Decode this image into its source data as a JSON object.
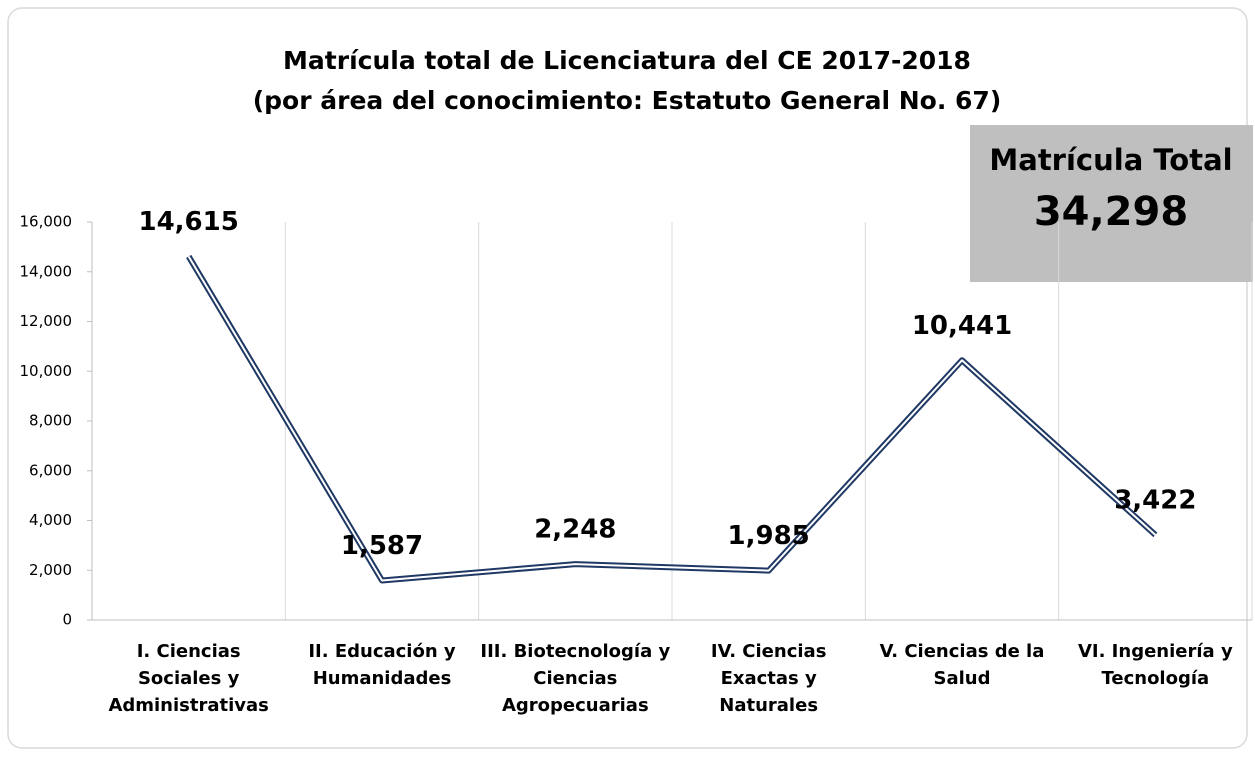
{
  "chart_data": {
    "type": "line",
    "title": "Matrícula total de Licenciatura del CE 2017-2018",
    "subtitle": "(por área del conocimiento: Estatuto General No. 67)",
    "categories": [
      "I. Ciencias Sociales y Administrativas",
      "II. Educación y Humanidades",
      "III. Biotecnología y Ciencias Agropecuarias",
      "IV. Ciencias Exactas y Naturales",
      "V. Ciencias de la Salud",
      "VI. Ingeniería y Tecnología"
    ],
    "values": [
      14615,
      1587,
      2248,
      1985,
      10441,
      3422
    ],
    "value_labels": [
      "14,615",
      "1,587",
      "2,248",
      "1,985",
      "10,441",
      "3,422"
    ],
    "color": "#1f3864",
    "ylim": [
      0,
      16000
    ],
    "yticks": [
      0,
      {
        "value": 2000,
        "label": "2,000"
      },
      {
        "value": 4000,
        "label": "4,000"
      },
      {
        "value": 6000,
        "label": "6,000"
      },
      {
        "value": 8000,
        "label": "8,000"
      },
      {
        "value": 10000,
        "label": "10,000"
      },
      {
        "value": 12000,
        "label": "12,000"
      },
      {
        "value": 14000,
        "label": "14,000"
      },
      {
        "value": 16000,
        "label": "16,000"
      }
    ],
    "grid": "x",
    "annotation": {
      "title": "Matrícula Total",
      "value": 34298,
      "label": "34,298"
    }
  }
}
